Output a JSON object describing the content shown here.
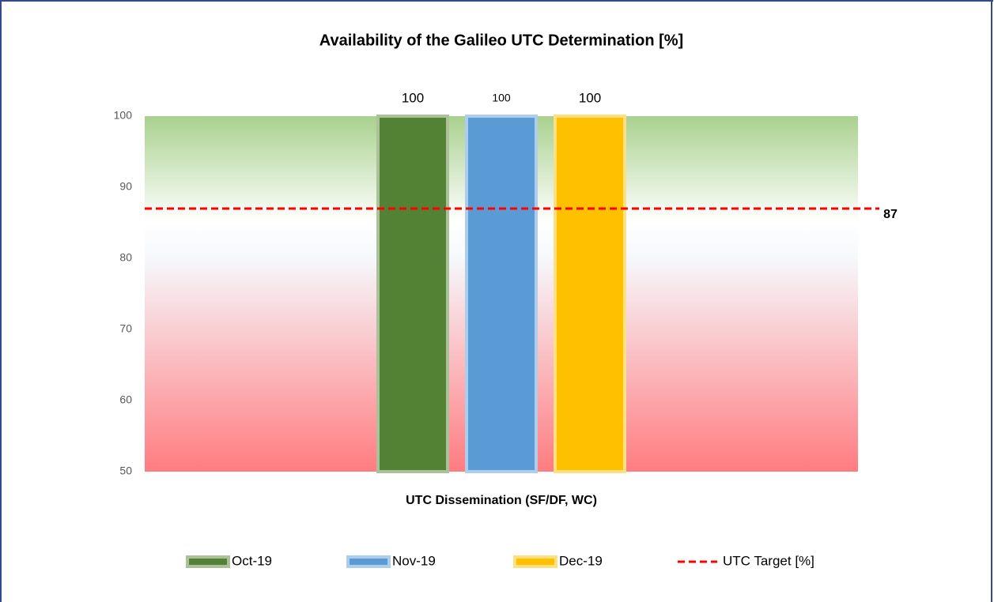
{
  "chart_data": {
    "type": "bar",
    "title": "Availability of the Galileo UTC Determination [%]",
    "categories": [
      "UTC Dissemination (SF/DF, WC)"
    ],
    "series": [
      {
        "name": "Oct-19",
        "color": "#548235",
        "values": [
          100
        ]
      },
      {
        "name": "Nov-19",
        "color": "#5b9bd5",
        "values": [
          100
        ]
      },
      {
        "name": "Dec-19",
        "color": "#ffc000",
        "values": [
          100
        ]
      }
    ],
    "target": {
      "name": "UTC Target [%]",
      "value": 87,
      "color": "#ff0000"
    },
    "ylim": [
      50,
      100
    ],
    "yticks": [
      50,
      60,
      70,
      80,
      90,
      100
    ],
    "grid": false
  }
}
